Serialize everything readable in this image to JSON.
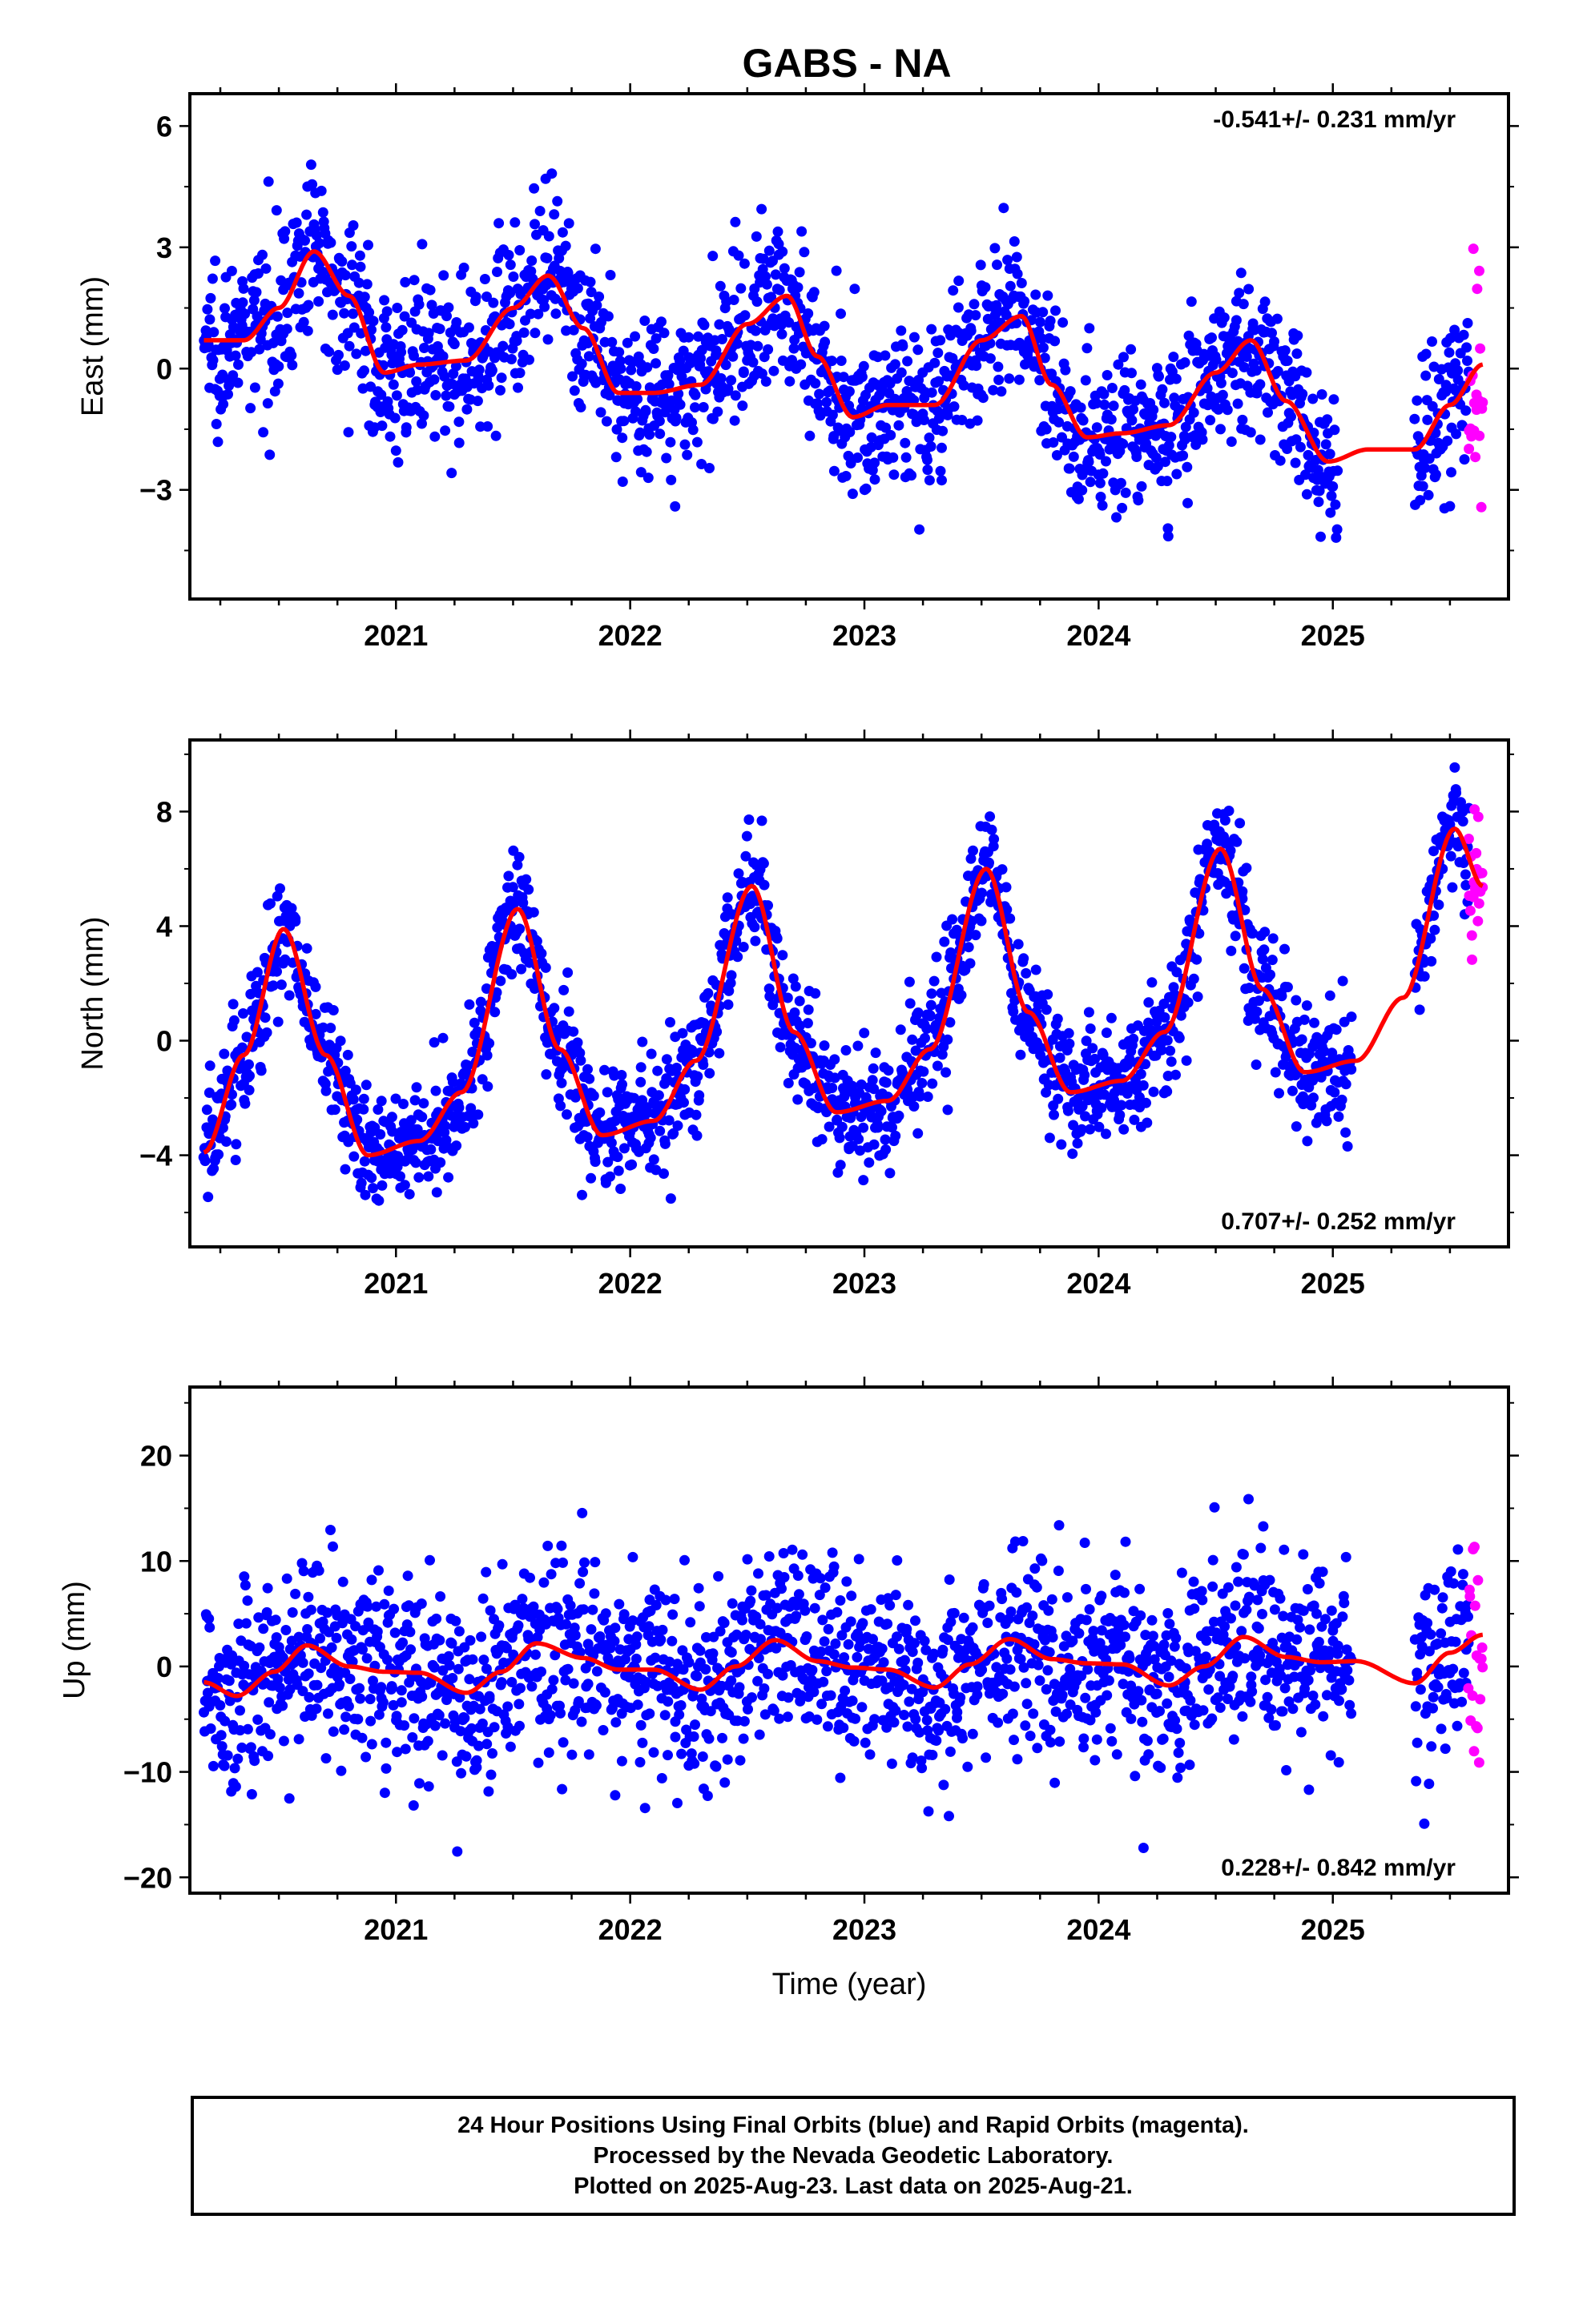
{
  "title": "GABS - NA",
  "chart_data": [
    {
      "type": "scatter",
      "ylabel": "East (mm)",
      "xlabel": "",
      "xlim": [
        2020.12,
        2025.75
      ],
      "ylim": [
        -5.7,
        6.8
      ],
      "yticks": [
        -3,
        0,
        3,
        6
      ],
      "yticklabels": [
        "−3",
        "0",
        "3",
        "6"
      ],
      "xticks": [
        2021,
        2022,
        2023,
        2024,
        2025
      ],
      "xticklabels": [
        "2021",
        "2022",
        "2023",
        "2024",
        "2025"
      ],
      "rate_label": "-0.541+/- 0.231 mm/yr",
      "rate_position": "top-right",
      "series": [
        {
          "role": "final-orbits",
          "color": "#0000ff",
          "noise": 1.0,
          "segments": [
            [
              2020.18,
              2025.02
            ],
            [
              2025.35,
              2025.58
            ]
          ]
        },
        {
          "role": "rapid-orbits",
          "color": "#ff00ff",
          "noise": 1.6,
          "segments": [
            [
              2025.58,
              2025.64
            ]
          ]
        },
        {
          "role": "model-fit",
          "color": "#ff0000",
          "x": [
            2020.18,
            2020.35,
            2020.5,
            2020.65,
            2020.8,
            2020.95,
            2021.1,
            2021.3,
            2021.5,
            2021.65,
            2021.8,
            2021.95,
            2022.1,
            2022.3,
            2022.5,
            2022.67,
            2022.8,
            2022.95,
            2023.1,
            2023.3,
            2023.5,
            2023.67,
            2023.8,
            2023.95,
            2024.1,
            2024.3,
            2024.5,
            2024.65,
            2024.8,
            2024.98,
            2025.15,
            2025.35,
            2025.5,
            2025.64
          ],
          "y": [
            0.7,
            0.7,
            1.5,
            2.9,
            1.8,
            -0.1,
            0.1,
            0.2,
            1.5,
            2.3,
            1.0,
            -0.6,
            -0.6,
            -0.4,
            1.1,
            1.8,
            0.3,
            -1.2,
            -0.9,
            -0.9,
            0.7,
            1.3,
            -0.4,
            -1.7,
            -1.6,
            -1.4,
            -0.1,
            0.7,
            -0.8,
            -2.3,
            -2.0,
            -2.0,
            -0.9,
            0.1
          ]
        }
      ]
    },
    {
      "type": "scatter",
      "ylabel": "North (mm)",
      "xlabel": "",
      "xlim": [
        2020.12,
        2025.75
      ],
      "ylim": [
        -7.2,
        10.5
      ],
      "yticks": [
        -4,
        0,
        4,
        8
      ],
      "yticklabels": [
        "−4",
        "0",
        "4",
        "8"
      ],
      "xticks": [
        2021,
        2022,
        2023,
        2024,
        2025
      ],
      "xticklabels": [
        "2021",
        "2022",
        "2023",
        "2024",
        "2025"
      ],
      "rate_label": "0.707+/- 0.252 mm/yr",
      "rate_position": "bottom-right",
      "series": [
        {
          "role": "final-orbits",
          "color": "#0000ff",
          "noise": 1.1,
          "segments": [
            [
              2020.18,
              2025.08
            ],
            [
              2025.35,
              2025.58
            ]
          ]
        },
        {
          "role": "rapid-orbits",
          "color": "#ff00ff",
          "noise": 1.6,
          "segments": [
            [
              2025.58,
              2025.64
            ]
          ]
        },
        {
          "role": "model-fit",
          "color": "#ff0000",
          "x": [
            2020.18,
            2020.35,
            2020.52,
            2020.7,
            2020.88,
            2021.1,
            2021.28,
            2021.52,
            2021.7,
            2021.88,
            2022.1,
            2022.28,
            2022.52,
            2022.7,
            2022.88,
            2023.1,
            2023.28,
            2023.52,
            2023.7,
            2023.88,
            2024.1,
            2024.28,
            2024.52,
            2024.7,
            2024.88,
            2025.1,
            2025.3,
            2025.52,
            2025.64
          ],
          "y": [
            -3.9,
            -0.5,
            3.9,
            -0.5,
            -4.0,
            -3.5,
            -1.8,
            4.6,
            -0.3,
            -3.3,
            -2.8,
            -0.7,
            5.4,
            0.3,
            -2.5,
            -2.1,
            -0.3,
            6.0,
            1.0,
            -1.8,
            -1.4,
            0.3,
            6.7,
            1.8,
            -1.1,
            -0.7,
            1.5,
            7.4,
            5.4
          ]
        }
      ]
    },
    {
      "type": "scatter",
      "ylabel": "Up (mm)",
      "xlabel": "Time (year)",
      "xlim": [
        2020.12,
        2025.75
      ],
      "ylim": [
        -21.5,
        26.5
      ],
      "yticks": [
        -20,
        -10,
        0,
        10,
        20
      ],
      "yticklabels": [
        "−20",
        "−10",
        "0",
        "10",
        "20"
      ],
      "xticks": [
        2021,
        2022,
        2023,
        2024,
        2025
      ],
      "xticklabels": [
        "2021",
        "2022",
        "2023",
        "2024",
        "2025"
      ],
      "rate_label": "0.228+/- 0.842 mm/yr",
      "rate_position": "bottom-right",
      "series": [
        {
          "role": "final-orbits",
          "color": "#0000ff",
          "noise": 4.6,
          "segments": [
            [
              2020.18,
              2025.08
            ],
            [
              2025.35,
              2025.58
            ]
          ]
        },
        {
          "role": "rapid-orbits",
          "color": "#ff00ff",
          "noise": 6.0,
          "segments": [
            [
              2025.58,
              2025.64
            ]
          ]
        },
        {
          "role": "model-fit",
          "color": "#ff0000",
          "x": [
            2020.18,
            2020.32,
            2020.48,
            2020.62,
            2020.8,
            2020.95,
            2021.1,
            2021.3,
            2021.45,
            2021.6,
            2021.8,
            2021.95,
            2022.1,
            2022.3,
            2022.45,
            2022.62,
            2022.8,
            2022.95,
            2023.1,
            2023.3,
            2023.45,
            2023.62,
            2023.8,
            2023.95,
            2024.1,
            2024.3,
            2024.45,
            2024.62,
            2024.8,
            2024.95,
            2025.1,
            2025.35,
            2025.5,
            2025.64
          ],
          "y": [
            -1.5,
            -2.8,
            -0.5,
            2.0,
            0.0,
            -0.5,
            -0.6,
            -2.5,
            -0.5,
            2.2,
            0.8,
            -0.3,
            -0.3,
            -2.2,
            0.0,
            2.5,
            0.5,
            -0.1,
            -0.3,
            -2.0,
            0.2,
            2.6,
            0.7,
            0.3,
            0.2,
            -1.8,
            0.0,
            2.8,
            0.9,
            0.4,
            0.5,
            -1.6,
            1.3,
            3.0
          ]
        }
      ]
    }
  ],
  "footer": {
    "line1": "24 Hour Positions Using Final Orbits (blue) and Rapid Orbits (magenta).",
    "line2": "Processed by the Nevada Geodetic Laboratory.",
    "line3": "Plotted on 2025-Aug-23. Last data on 2025-Aug-21."
  }
}
